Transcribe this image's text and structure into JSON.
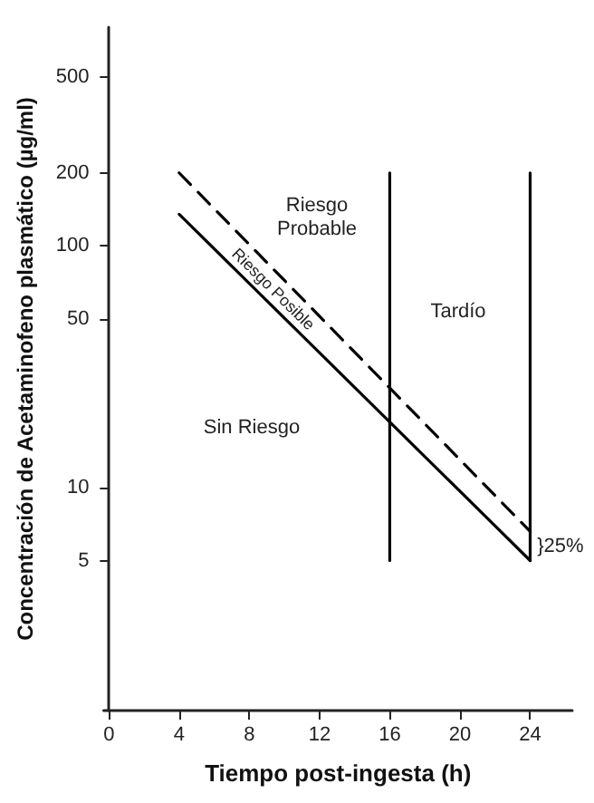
{
  "chart_data": {
    "type": "line",
    "xlabel": "Tiempo post-ingesta (h)",
    "ylabel": "Concentración de Acetaminofeno plasmático (µg/ml)",
    "log": "y",
    "grid": false,
    "marker": "none",
    "xlim": [
      -0.3,
      26.4
    ],
    "xticks": [
      0,
      4,
      8,
      12,
      16,
      20,
      24
    ],
    "ylim": [
      1.2,
      800
    ],
    "yticks": [
      5,
      10,
      50,
      100,
      200,
      500
    ],
    "series": [
      {
        "color": "#000000",
        "x": [
          4,
          24
        ],
        "values": [
          135,
          5
        ],
        "line_style": "solid"
      },
      {
        "color": "#000000",
        "x": [
          4,
          24
        ],
        "values": [
          200,
          6.6
        ],
        "line_style": "dashed"
      },
      {
        "color": "#000000",
        "x": [
          16,
          16
        ],
        "values": [
          200,
          5
        ],
        "line_style": "solid"
      },
      {
        "color": "#000000",
        "x": [
          24,
          24
        ],
        "values": [
          200,
          5
        ],
        "line_style": "solid"
      }
    ],
    "annotations": [
      "Riesgo\nProbable",
      "Riesgo Posible",
      "Tardío",
      "Sin Riesgo",
      {
        "text": "}25%",
        "x": 24.4,
        "y": 5.7
      }
    ]
  }
}
